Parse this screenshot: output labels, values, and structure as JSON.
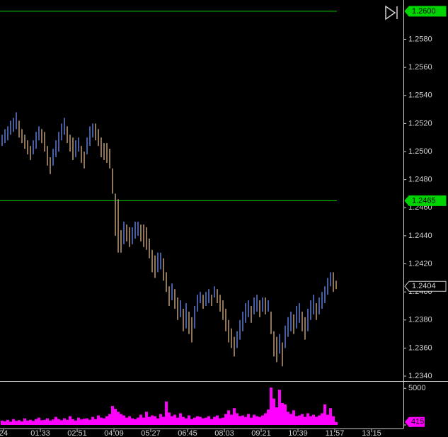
{
  "chart_data": {
    "type": "ohlc",
    "x": [
      12,
      18,
      24,
      30,
      36,
      42,
      48,
      54,
      60,
      66,
      72,
      78,
      84,
      90,
      96,
      102,
      108,
      114,
      120,
      126,
      132,
      138,
      144,
      150,
      156,
      162,
      168,
      174,
      180,
      186,
      192,
      198,
      204,
      210,
      216,
      222,
      228,
      234,
      240,
      246,
      252,
      258,
      264,
      270,
      276,
      282,
      288,
      294,
      300,
      306,
      312,
      318,
      324,
      330,
      336,
      342,
      348,
      354,
      360,
      366,
      372,
      378,
      384,
      390,
      396,
      402,
      408,
      414,
      420,
      426,
      432,
      438,
      444,
      450,
      456,
      462,
      468,
      474,
      480,
      486,
      492,
      498,
      504,
      510,
      516,
      522,
      528,
      534,
      540,
      546,
      552,
      558,
      564,
      570,
      576,
      582,
      588,
      594,
      600,
      606,
      612,
      618,
      624,
      630,
      636,
      642,
      648,
      654,
      660,
      666,
      672,
      678,
      684,
      690,
      696,
      702,
      708,
      714,
      720
    ],
    "high": [
      1.2512,
      1.2516,
      1.2518,
      1.2522,
      1.2524,
      1.2528,
      1.2522,
      1.2516,
      1.2512,
      1.2508,
      1.2504,
      1.2508,
      1.2514,
      1.2518,
      1.2516,
      1.2514,
      1.2504,
      1.2496,
      1.2502,
      1.2508,
      1.2514,
      1.252,
      1.2524,
      1.2518,
      1.2512,
      1.251,
      1.2508,
      1.251,
      1.2504,
      1.25,
      1.251,
      1.2518,
      1.252,
      1.252,
      1.2516,
      1.251,
      1.2506,
      1.2506,
      1.2502,
      1.2488,
      1.247,
      1.2466,
      1.2444,
      1.245,
      1.2448,
      1.2446,
      1.2446,
      1.245,
      1.245,
      1.2448,
      1.2448,
      1.2446,
      1.2438,
      1.243,
      1.2426,
      1.2428,
      1.2428,
      1.2424,
      1.2414,
      1.2404,
      1.2406,
      1.2402,
      1.2396,
      1.2394,
      1.2388,
      1.2392,
      1.2386,
      1.2382,
      1.239,
      1.2398,
      1.24,
      1.2398,
      1.24,
      1.2402,
      1.2398,
      1.2404,
      1.2402,
      1.2398,
      1.2394,
      1.2388,
      1.238,
      1.2374,
      1.2368,
      1.2372,
      1.238,
      1.2386,
      1.2392,
      1.2394,
      1.239,
      1.2396,
      1.2398,
      1.2394,
      1.2396,
      1.2396,
      1.2394,
      1.2386,
      1.2372,
      1.2368,
      1.237,
      1.2364,
      1.2376,
      1.2382,
      1.2386,
      1.2384,
      1.239,
      1.2392,
      1.2386,
      1.2382,
      1.2388,
      1.2394,
      1.2398,
      1.2392,
      1.2396,
      1.24,
      1.2404,
      1.241,
      1.2414,
      1.2414,
      1.2408
    ],
    "low": [
      1.2504,
      1.2506,
      1.2508,
      1.2512,
      1.2514,
      1.2516,
      1.251,
      1.2506,
      1.2502,
      1.2498,
      1.2494,
      1.2498,
      1.2502,
      1.2508,
      1.2506,
      1.25,
      1.249,
      1.2484,
      1.249,
      1.2496,
      1.25,
      1.2508,
      1.2512,
      1.2506,
      1.25,
      1.2494,
      1.2496,
      1.25,
      1.2492,
      1.2488,
      1.2498,
      1.2504,
      1.251,
      1.2508,
      1.2504,
      1.2496,
      1.2494,
      1.2492,
      1.2488,
      1.247,
      1.244,
      1.2428,
      1.2428,
      1.2434,
      1.2436,
      1.2432,
      1.2434,
      1.2438,
      1.244,
      1.2436,
      1.2432,
      1.243,
      1.2424,
      1.2414,
      1.241,
      1.2414,
      1.2416,
      1.2408,
      1.24,
      1.239,
      1.2394,
      1.2388,
      1.238,
      1.2382,
      1.2372,
      1.2374,
      1.237,
      1.2364,
      1.2374,
      1.2386,
      1.2392,
      1.2388,
      1.239,
      1.2392,
      1.239,
      1.2396,
      1.2392,
      1.2386,
      1.238,
      1.2372,
      1.2364,
      1.236,
      1.2354,
      1.236,
      1.2366,
      1.2372,
      1.2378,
      1.2382,
      1.2378,
      1.2384,
      1.2386,
      1.2382,
      1.2386,
      1.2384,
      1.2386,
      1.237,
      1.2354,
      1.235,
      1.2356,
      1.2347,
      1.236,
      1.2368,
      1.2372,
      1.237,
      1.2374,
      1.2378,
      1.2372,
      1.2366,
      1.2372,
      1.238,
      1.2384,
      1.238,
      1.2384,
      1.2388,
      1.2392,
      1.2398,
      1.2404,
      1.24,
      1.2402
    ],
    "up_color": "#5b73c9",
    "down_color": "#b39370",
    "xlim": [
      7.5,
      862.5
    ],
    "xticks": [
      {
        "value": 15,
        "label": "24"
      },
      {
        "value": 93,
        "label": "01:33"
      },
      {
        "value": 171,
        "label": "02:51"
      },
      {
        "value": 249,
        "label": "04:09"
      },
      {
        "value": 327,
        "label": "05:27"
      },
      {
        "value": 405,
        "label": "06:45"
      },
      {
        "value": 483,
        "label": "08:03"
      },
      {
        "value": 561,
        "label": "09:21"
      },
      {
        "value": 639,
        "label": "10:39"
      },
      {
        "value": 717,
        "label": "11:57"
      },
      {
        "value": 795,
        "label": "13:15"
      }
    ],
    "ylim": [
      1.2337,
      1.2608
    ],
    "yticks": [
      {
        "value": 1.234,
        "label": "1.2340"
      },
      {
        "value": 1.236,
        "label": "1.2360"
      },
      {
        "value": 1.238,
        "label": "1.2380"
      },
      {
        "value": 1.24,
        "label": "1.2400"
      },
      {
        "value": 1.242,
        "label": "1.2420"
      },
      {
        "value": 1.244,
        "label": "1.2440"
      },
      {
        "value": 1.246,
        "label": "1.2460"
      },
      {
        "value": 1.248,
        "label": "1.2480"
      },
      {
        "value": 1.25,
        "label": "1.2500"
      },
      {
        "value": 1.252,
        "label": "1.2520"
      },
      {
        "value": 1.254,
        "label": "1.2540"
      },
      {
        "value": 1.256,
        "label": "1.2560"
      },
      {
        "value": 1.258,
        "label": "1.2580"
      }
    ],
    "levels": [
      {
        "value": 1.26,
        "label": "1.2600"
      },
      {
        "value": 1.2465,
        "label": "1.2465"
      }
    ],
    "level_color": "#00d400",
    "last_price": {
      "value": 1.2404,
      "label": "1.2404"
    },
    "volume": {
      "color": "#ff00ff",
      "values": [
        600,
        500,
        700,
        450,
        800,
        550,
        650,
        500,
        900,
        600,
        700,
        550,
        800,
        1000,
        650,
        700,
        900,
        600,
        750,
        1100,
        800,
        650,
        900,
        700,
        1200,
        800,
        600,
        1000,
        750,
        850,
        900,
        700,
        1100,
        800,
        1300,
        1000,
        900,
        1200,
        1500,
        2600,
        2200,
        1800,
        1500,
        1300,
        1000,
        1200,
        900,
        800,
        1000,
        1400,
        1000,
        1800,
        1100,
        1300,
        1200,
        900,
        1500,
        1100,
        3200,
        1700,
        1200,
        1400,
        1000,
        1600,
        1100,
        900,
        1300,
        800,
        1000,
        1200,
        1100,
        900,
        1000,
        1200,
        800,
        1100,
        1300,
        900,
        1000,
        1500,
        2000,
        1400,
        2300,
        1600,
        1200,
        1300,
        1100,
        1500,
        1000,
        1400,
        1200,
        1100,
        1300,
        1600,
        2100,
        5100,
        3600,
        2400,
        4800,
        3000,
        2800,
        1800,
        1500,
        2000,
        1200,
        1300,
        1500,
        1100,
        1600,
        1200,
        1400,
        1100,
        1300,
        1600,
        2800,
        1400,
        2300,
        1200,
        415
      ],
      "ylim": [
        0,
        5800
      ],
      "yticks": [
        0,
        5000
      ],
      "last": 415
    }
  }
}
